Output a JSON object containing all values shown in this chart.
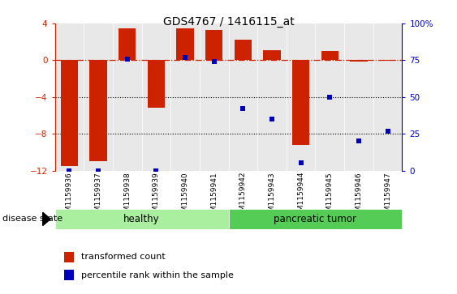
{
  "title": "GDS4767 / 1416115_at",
  "samples": [
    "GSM1159936",
    "GSM1159937",
    "GSM1159938",
    "GSM1159939",
    "GSM1159940",
    "GSM1159941",
    "GSM1159942",
    "GSM1159943",
    "GSM1159944",
    "GSM1159945",
    "GSM1159946",
    "GSM1159947"
  ],
  "transformed_count": [
    -11.5,
    -11.0,
    3.5,
    -5.2,
    3.5,
    3.3,
    2.2,
    1.1,
    -9.2,
    1.0,
    -0.1,
    -0.05
  ],
  "percentile_rank": [
    0,
    0,
    76,
    0,
    77,
    74,
    42,
    35,
    5,
    50,
    20,
    27
  ],
  "ylim_left": [
    -12,
    4
  ],
  "ylim_right": [
    0,
    100
  ],
  "yticks_left": [
    -12,
    -8,
    -4,
    0,
    4
  ],
  "yticks_right": [
    0,
    25,
    50,
    75,
    100
  ],
  "bar_color": "#cc2200",
  "dot_color": "#0000bb",
  "healthy_label": "healthy",
  "tumor_label": "pancreatic tumor",
  "healthy_color": "#aaeea0",
  "tumor_color": "#55cc55",
  "group_label": "disease state",
  "legend_bar_label": "transformed count",
  "legend_dot_label": "percentile rank within the sample",
  "dotted_lines": [
    -4,
    -8
  ],
  "n_healthy": 6,
  "n_tumor": 6
}
